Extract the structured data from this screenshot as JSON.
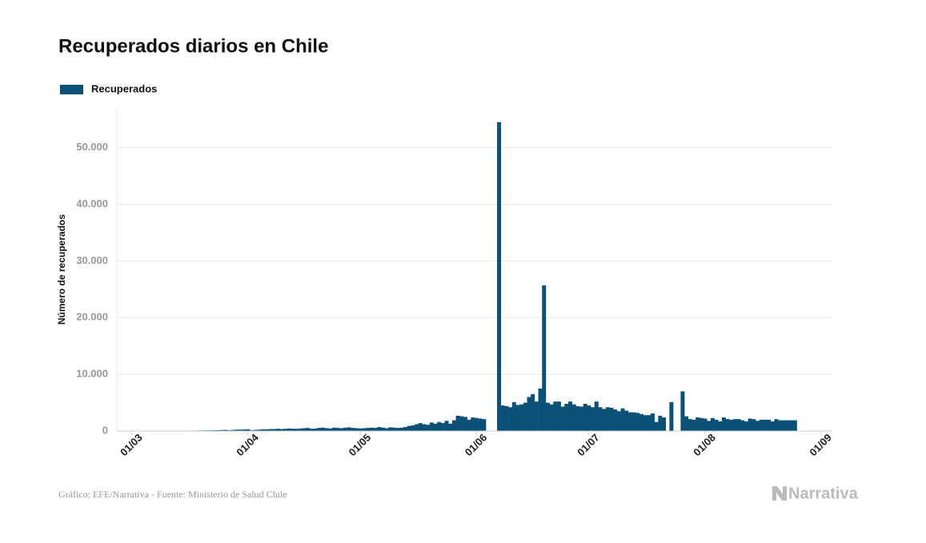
{
  "chart_data": {
    "type": "bar",
    "title": "Recuperados diarios en Chile",
    "y_label": "Número de recuperados",
    "source": "Gráfico: EFE/Narrativa - Fuente: Ministerio de Salud Chile",
    "brand": "Narrativa",
    "color": "#0b5076",
    "grid": true,
    "legend": "top-left",
    "xlim": [
      -4,
      187
    ],
    "ylim": [
      0,
      57000
    ],
    "xticks": [
      {
        "value": 0,
        "label": "01/03"
      },
      {
        "value": 31,
        "label": "01/04"
      },
      {
        "value": 61,
        "label": "01/05"
      },
      {
        "value": 92,
        "label": "01/06"
      },
      {
        "value": 122,
        "label": "01/07"
      },
      {
        "value": 153,
        "label": "01/08"
      },
      {
        "value": 184,
        "label": "01/09"
      }
    ],
    "yticks": [
      0,
      {
        "value": 10000,
        "label": "10.000"
      },
      {
        "value": 20000,
        "label": "20.000"
      },
      {
        "value": 30000,
        "label": "30.000"
      },
      {
        "value": 40000,
        "label": "40.000"
      },
      {
        "value": 50000,
        "label": "50.000"
      }
    ],
    "x": [
      0,
      1,
      2,
      3,
      4,
      5,
      6,
      7,
      8,
      9,
      10,
      11,
      12,
      13,
      14,
      15,
      16,
      17,
      18,
      19,
      20,
      21,
      22,
      23,
      24,
      25,
      26,
      27,
      28,
      29,
      30,
      31,
      32,
      33,
      34,
      35,
      36,
      37,
      38,
      39,
      40,
      41,
      42,
      43,
      44,
      45,
      46,
      47,
      48,
      49,
      50,
      51,
      52,
      53,
      54,
      55,
      56,
      57,
      58,
      59,
      60,
      61,
      62,
      63,
      64,
      65,
      66,
      67,
      68,
      69,
      70,
      71,
      72,
      73,
      74,
      75,
      76,
      77,
      78,
      79,
      80,
      81,
      82,
      83,
      84,
      85,
      86,
      87,
      88,
      89,
      90,
      91,
      92,
      93,
      94,
      95,
      96,
      97,
      98,
      99,
      100,
      101,
      102,
      103,
      104,
      105,
      106,
      107,
      108,
      109,
      110,
      111,
      112,
      113,
      114,
      115,
      116,
      117,
      118,
      119,
      120,
      121,
      122,
      123,
      124,
      125,
      126,
      127,
      128,
      129,
      130,
      131,
      132,
      133,
      134,
      135,
      136,
      137,
      138,
      139,
      140,
      141,
      142,
      143,
      144,
      145,
      146,
      147,
      148,
      149,
      150,
      151,
      152,
      153,
      154,
      155,
      156,
      157,
      158,
      159,
      160,
      161,
      162,
      163,
      164,
      165,
      166,
      167,
      168,
      169,
      170,
      171,
      172,
      173,
      174,
      175,
      176,
      177
    ],
    "series": [
      {
        "name": "Recuperados",
        "color": "#0b5076",
        "values": [
          null,
          null,
          null,
          10,
          10,
          10,
          10,
          20,
          20,
          20,
          30,
          30,
          40,
          50,
          50,
          60,
          80,
          80,
          100,
          100,
          120,
          120,
          150,
          150,
          180,
          200,
          150,
          200,
          250,
          250,
          280,
          300,
          150,
          200,
          250,
          300,
          300,
          350,
          350,
          400,
          350,
          400,
          450,
          400,
          400,
          450,
          500,
          550,
          400,
          450,
          550,
          600,
          500,
          450,
          600,
          550,
          500,
          600,
          650,
          550,
          500,
          450,
          500,
          550,
          600,
          550,
          700,
          600,
          500,
          650,
          600,
          550,
          600,
          700,
          900,
          1000,
          1200,
          1400,
          1200,
          1100,
          1500,
          1300,
          1600,
          1400,
          1800,
          1300,
          1900,
          2700,
          2600,
          2500,
          2000,
          2400,
          2300,
          2200,
          2100,
          null,
          null,
          null,
          54500,
          4500,
          4400,
          4200,
          5100,
          4600,
          4700,
          5000,
          6000,
          6500,
          5200,
          7500,
          25700,
          5000,
          4700,
          5200,
          5200,
          4300,
          4800,
          5200,
          4700,
          4400,
          4300,
          4800,
          4500,
          4200,
          5200,
          4200,
          3900,
          4200,
          4100,
          3800,
          3500,
          4000,
          3600,
          3300,
          3300,
          3200,
          3000,
          2800,
          2800,
          3100,
          1600,
          2700,
          2400,
          null,
          5100,
          null,
          null,
          7000,
          2600,
          2100,
          2000,
          2400,
          2300,
          2200,
          1800,
          2300,
          2000,
          1700,
          2400,
          2100,
          2000,
          2100,
          2100,
          1900,
          1700,
          2200,
          2100,
          1800,
          2000,
          2000,
          2000,
          1700,
          2100,
          1900,
          1900,
          1900,
          1900,
          1900
        ]
      }
    ]
  }
}
